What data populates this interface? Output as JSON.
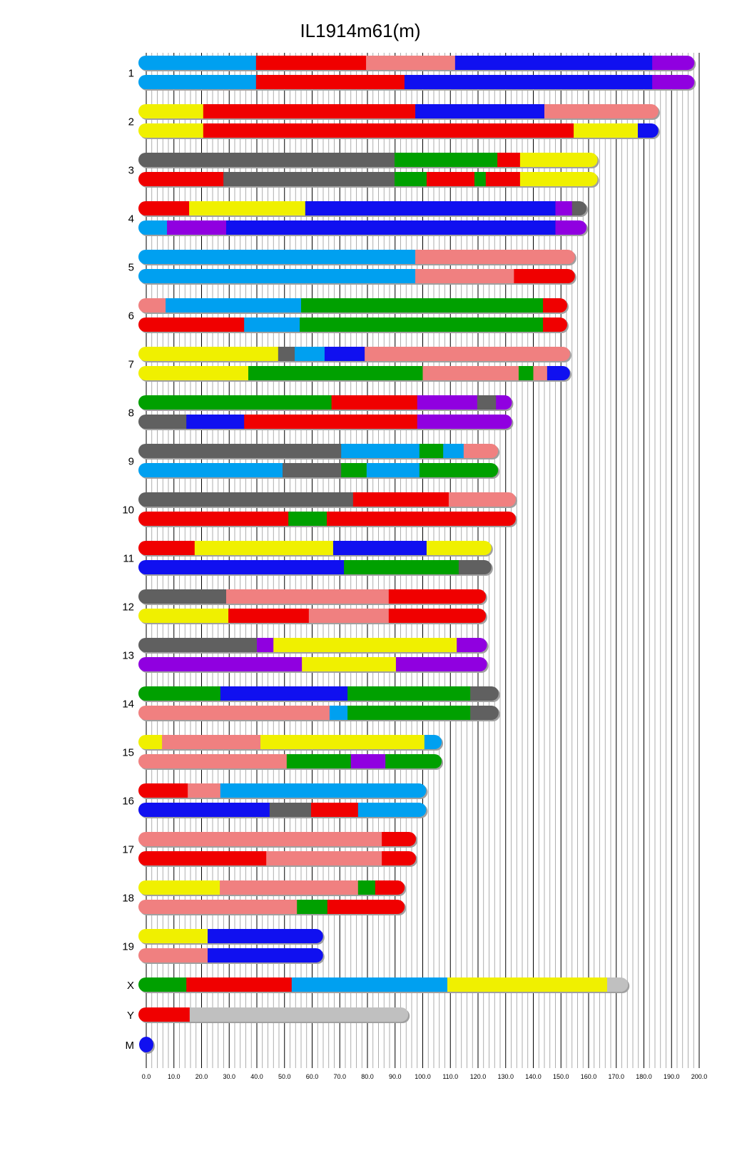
{
  "chart_data": {
    "type": "chromosome-painting",
    "title": "IL1914m61(m)",
    "xlim": [
      0,
      200
    ],
    "x_ticks": [
      "0.0",
      "10.0",
      "20.0",
      "30.0",
      "40.0",
      "50.0",
      "60.0",
      "70.0",
      "80.0",
      "90.0",
      "100.0",
      "110.0",
      "120.0",
      "130.0",
      "140.0",
      "150.0",
      "160.0",
      "170.0",
      "180.0",
      "190.0",
      "200.0"
    ],
    "palette": {
      "lb": "#00a0f0",
      "r": "#f00000",
      "p": "#f08080",
      "b": "#1010f0",
      "pu": "#9000e0",
      "y": "#f0f000",
      "g": "#606060",
      "gr": "#00a000",
      "lg": "#c0c0c0"
    },
    "chromosomes": [
      {
        "label": "1",
        "haplotypes": [
          [
            [
              "lb",
              39.7
            ],
            [
              "r",
              79.5
            ],
            [
              "p",
              111.7
            ],
            [
              "b",
              183
            ],
            [
              "pu",
              198
            ]
          ],
          [
            [
              "lb",
              39.7
            ],
            [
              "r",
              93.4
            ],
            [
              "b",
              183
            ],
            [
              "pu",
              198
            ]
          ]
        ]
      },
      {
        "label": "2",
        "haplotypes": [
          [
            [
              "y",
              20.6
            ],
            [
              "r",
              97.3
            ],
            [
              "b",
              144
            ],
            [
              "p",
              185
            ]
          ],
          [
            [
              "y",
              20.6
            ],
            [
              "r",
              154.6
            ],
            [
              "y",
              177.8
            ],
            [
              "b",
              185
            ]
          ]
        ]
      },
      {
        "label": "3",
        "haplotypes": [
          [
            [
              "g",
              89.8
            ],
            [
              "gr",
              127
            ],
            [
              "r",
              135.2
            ],
            [
              "y",
              163
            ]
          ],
          [
            [
              "r",
              27.9
            ],
            [
              "g",
              89.8
            ],
            [
              "gr",
              101.4
            ],
            [
              "r",
              118.7
            ],
            [
              "gr",
              122.8
            ],
            [
              "r",
              135.2
            ],
            [
              "y",
              163
            ]
          ]
        ]
      },
      {
        "label": "4",
        "haplotypes": [
          [
            [
              "r",
              15.5
            ],
            [
              "y",
              57.5
            ],
            [
              "b",
              148
            ],
            [
              "pu",
              154
            ],
            [
              "g",
              159
            ]
          ],
          [
            [
              "lb",
              7.5
            ],
            [
              "pu",
              28.9
            ],
            [
              "b",
              148
            ],
            [
              "pu",
              159
            ]
          ]
        ]
      },
      {
        "label": "5",
        "haplotypes": [
          [
            [
              "lb",
              97.3
            ],
            [
              "p",
              154.8
            ]
          ],
          [
            [
              "lb",
              97.3
            ],
            [
              "p",
              133
            ],
            [
              "r",
              154.8
            ]
          ]
        ]
      },
      {
        "label": "6",
        "haplotypes": [
          [
            [
              "p",
              7
            ],
            [
              "lb",
              56
            ],
            [
              "gr",
              143.5
            ],
            [
              "r",
              152
            ]
          ],
          [
            [
              "r",
              35.4
            ],
            [
              "lb",
              55.5
            ],
            [
              "gr",
              143.5
            ],
            [
              "r",
              152
            ]
          ]
        ]
      },
      {
        "label": "7",
        "haplotypes": [
          [
            [
              "y",
              47.7
            ],
            [
              "g",
              53.7
            ],
            [
              "lb",
              64.5
            ],
            [
              "b",
              79
            ],
            [
              "p",
              153
            ]
          ],
          [
            [
              "y",
              36.9
            ],
            [
              "gr",
              100
            ],
            [
              "p",
              134.7
            ],
            [
              "gr",
              140
            ],
            [
              "p",
              145
            ],
            [
              "b",
              153
            ]
          ]
        ]
      },
      {
        "label": "8",
        "haplotypes": [
          [
            [
              "gr",
              67
            ],
            [
              "r",
              98
            ],
            [
              "pu",
              119.7
            ],
            [
              "g",
              126.5
            ],
            [
              "pu",
              132
            ]
          ],
          [
            [
              "g",
              14.5
            ],
            [
              "b",
              35.4
            ],
            [
              "r",
              98
            ],
            [
              "pu",
              132
            ]
          ]
        ]
      },
      {
        "label": "9",
        "haplotypes": [
          [
            [
              "g",
              70.5
            ],
            [
              "lb",
              98.8
            ],
            [
              "gr",
              107.4
            ],
            [
              "lb",
              114.8
            ],
            [
              "p",
              127
            ]
          ],
          [
            [
              "lb",
              49.3
            ],
            [
              "g",
              70.5
            ],
            [
              "gr",
              79.7
            ],
            [
              "lb",
              98.8
            ],
            [
              "gr",
              127
            ]
          ]
        ]
      },
      {
        "label": "10",
        "haplotypes": [
          [
            [
              "g",
              74.8
            ],
            [
              "r",
              109.4
            ],
            [
              "p",
              133.4
            ]
          ],
          [
            [
              "r",
              51.4
            ],
            [
              "gr",
              65.3
            ],
            [
              "r",
              133.4
            ]
          ]
        ]
      },
      {
        "label": "11",
        "haplotypes": [
          [
            [
              "r",
              17.5
            ],
            [
              "y",
              67.6
            ],
            [
              "b",
              101.4
            ],
            [
              "y",
              124.6
            ]
          ],
          [
            [
              "b",
              71.5
            ],
            [
              "gr",
              113
            ],
            [
              "g",
              124.6
            ]
          ]
        ]
      },
      {
        "label": "12",
        "haplotypes": [
          [
            [
              "g",
              28.9
            ],
            [
              "p",
              87.7
            ],
            [
              "r",
              122.6
            ]
          ],
          [
            [
              "y",
              29.7
            ],
            [
              "r",
              58.8
            ],
            [
              "p",
              87.7
            ],
            [
              "r",
              122.6
            ]
          ]
        ]
      },
      {
        "label": "13",
        "haplotypes": [
          [
            [
              "g",
              40
            ],
            [
              "pu",
              46
            ],
            [
              "y",
              112.3
            ],
            [
              "pu",
              123
            ]
          ],
          [
            [
              "pu",
              56.3
            ],
            [
              "y",
              90.3
            ],
            [
              "pu",
              123
            ]
          ]
        ]
      },
      {
        "label": "14",
        "haplotypes": [
          [
            [
              "gr",
              26.8
            ],
            [
              "b",
              72.8
            ],
            [
              "gr",
              117.2
            ],
            [
              "g",
              127.2
            ]
          ],
          [
            [
              "p",
              66.3
            ],
            [
              "lb",
              72.8
            ],
            [
              "gr",
              117.2
            ],
            [
              "g",
              127.2
            ]
          ]
        ]
      },
      {
        "label": "15",
        "haplotypes": [
          [
            [
              "y",
              5.7
            ],
            [
              "p",
              41.3
            ],
            [
              "y",
              100.6
            ],
            [
              "lb",
              106.6
            ]
          ],
          [
            [
              "p",
              50.8
            ],
            [
              "gr",
              74
            ],
            [
              "pu",
              86.5
            ],
            [
              "gr",
              106.6
            ]
          ]
        ]
      },
      {
        "label": "16",
        "haplotypes": [
          [
            [
              "r",
              15
            ],
            [
              "p",
              26.8
            ],
            [
              "lb",
              101
            ]
          ],
          [
            [
              "b",
              44.6
            ],
            [
              "g",
              59.6
            ],
            [
              "r",
              76.6
            ],
            [
              "lb",
              101
            ]
          ]
        ]
      },
      {
        "label": "17",
        "haplotypes": [
          [
            [
              "p",
              85.2
            ],
            [
              "r",
              97.3
            ]
          ],
          [
            [
              "r",
              43.4
            ],
            [
              "p",
              85.2
            ],
            [
              "r",
              97.3
            ]
          ]
        ]
      },
      {
        "label": "18",
        "haplotypes": [
          [
            [
              "y",
              26.6
            ],
            [
              "p",
              76.6
            ],
            [
              "gr",
              82.8
            ],
            [
              "r",
              93.2
            ]
          ],
          [
            [
              "p",
              54.5
            ],
            [
              "gr",
              65.5
            ],
            [
              "r",
              93.2
            ]
          ]
        ]
      },
      {
        "label": "19",
        "haplotypes": [
          [
            [
              "y",
              22.2
            ],
            [
              "b",
              63.7
            ]
          ],
          [
            [
              "p",
              22.2
            ],
            [
              "b",
              63.7
            ]
          ]
        ]
      },
      {
        "label": "X",
        "haplotypes": [
          [
            [
              "gr",
              14.5
            ],
            [
              "r",
              52.6
            ],
            [
              "lb",
              108.9
            ],
            [
              "y",
              166.7
            ],
            [
              "lg",
              174
            ]
          ]
        ]
      },
      {
        "label": "Y",
        "haplotypes": [
          [
            [
              "r",
              15.7
            ],
            [
              "lg",
              94.5
            ]
          ]
        ]
      },
      {
        "label": "M",
        "haplotypes": [
          [
            [
              "b",
              0.02
            ]
          ]
        ]
      }
    ]
  }
}
